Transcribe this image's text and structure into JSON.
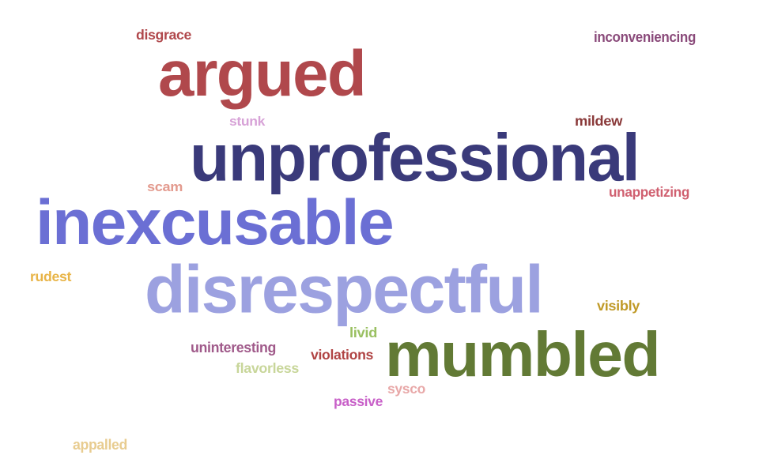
{
  "word_cloud": {
    "words": [
      {
        "text": "unprofessional",
        "color": "#3a3a7a"
      },
      {
        "text": "inexcusable",
        "color": "#6b6fd4"
      },
      {
        "text": "disrespectful",
        "color": "#9ca1e0"
      },
      {
        "text": "argued",
        "color": "#b0484c"
      },
      {
        "text": "mumbled",
        "color": "#627a35"
      },
      {
        "text": "disgrace",
        "color": "#b0484c"
      },
      {
        "text": "inconveniencing",
        "color": "#8a4a7a"
      },
      {
        "text": "stunk",
        "color": "#d7a2d7"
      },
      {
        "text": "mildew",
        "color": "#8a3a3a"
      },
      {
        "text": "scam",
        "color": "#e39a8e"
      },
      {
        "text": "unappetizing",
        "color": "#d06070"
      },
      {
        "text": "rudest",
        "color": "#e8b447"
      },
      {
        "text": "visibly",
        "color": "#c09a28"
      },
      {
        "text": "livid",
        "color": "#9ac062"
      },
      {
        "text": "uninteresting",
        "color": "#a05a8a"
      },
      {
        "text": "violations",
        "color": "#b04444"
      },
      {
        "text": "flavorless",
        "color": "#c8d69a"
      },
      {
        "text": "sysco",
        "color": "#e8a8a8"
      },
      {
        "text": "passive",
        "color": "#c860c8"
      },
      {
        "text": "appalled",
        "color": "#e8cc90"
      }
    ]
  }
}
